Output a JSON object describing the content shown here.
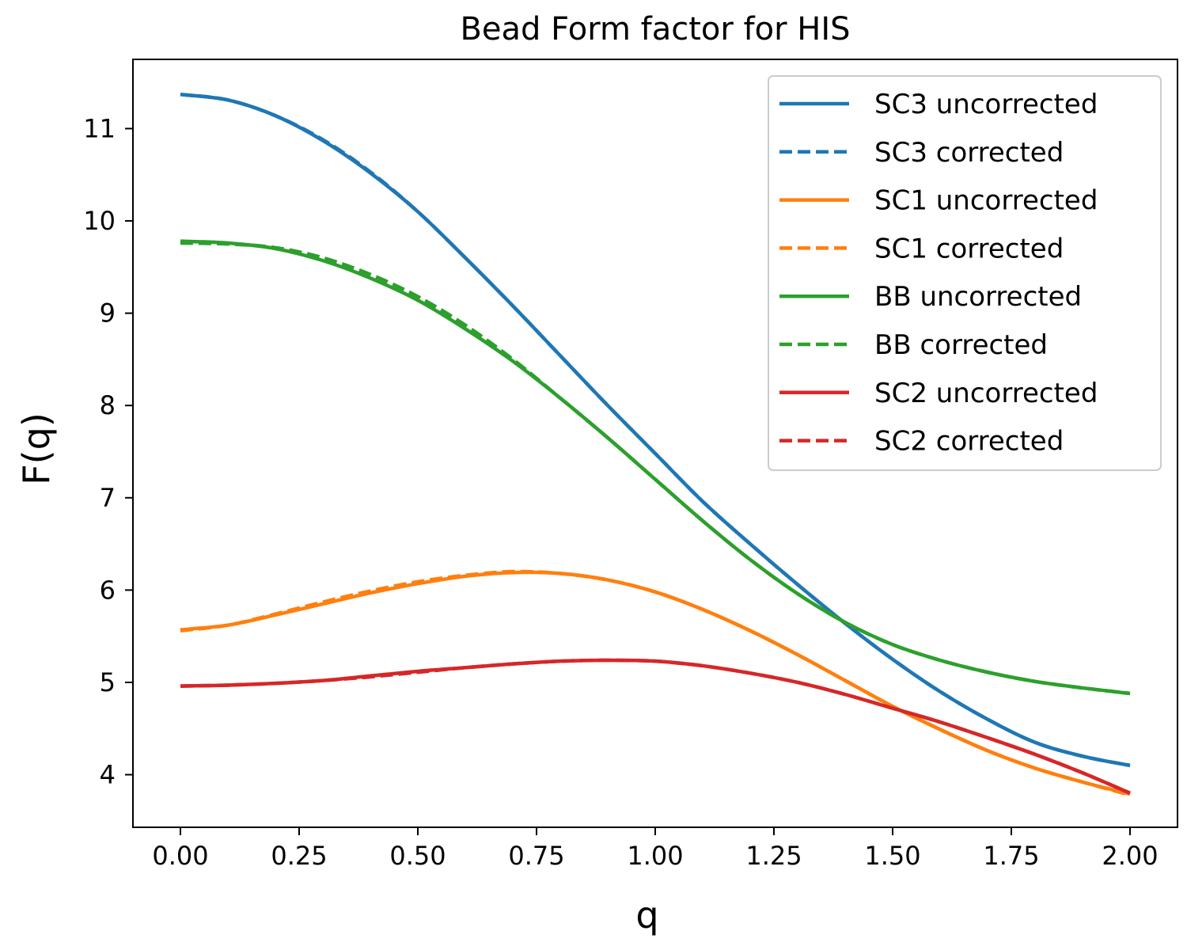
{
  "chart_data": {
    "type": "line",
    "title": "Bead Form factor for HIS",
    "xlabel": "q",
    "ylabel": "F(q)",
    "xlim": [
      -0.1,
      2.1
    ],
    "ylim": [
      3.43,
      11.75
    ],
    "xticks": [
      0.0,
      0.25,
      0.5,
      0.75,
      1.0,
      1.25,
      1.5,
      1.75,
      2.0
    ],
    "xtick_labels": [
      "0.00",
      "0.25",
      "0.50",
      "0.75",
      "1.00",
      "1.25",
      "1.50",
      "1.75",
      "2.00"
    ],
    "yticks": [
      4,
      5,
      6,
      7,
      8,
      9,
      10,
      11
    ],
    "ytick_labels": [
      "4",
      "5",
      "6",
      "7",
      "8",
      "9",
      "10",
      "11"
    ],
    "grid": false,
    "legend_position": "top-right",
    "x": [
      0.0,
      0.1,
      0.2,
      0.3,
      0.4,
      0.5,
      0.6,
      0.7,
      0.8,
      0.9,
      1.0,
      1.1,
      1.2,
      1.3,
      1.4,
      1.5,
      1.6,
      1.7,
      1.8,
      1.9,
      2.0
    ],
    "series": [
      {
        "name": "SC3 uncorrected",
        "color": "#1f77b4",
        "dash": "solid",
        "values": [
          11.37,
          11.31,
          11.14,
          10.87,
          10.52,
          10.1,
          9.6,
          9.08,
          8.54,
          8.0,
          7.48,
          6.96,
          6.5,
          6.06,
          5.64,
          5.25,
          4.9,
          4.6,
          4.35,
          4.2,
          4.1
        ]
      },
      {
        "name": "SC3 corrected",
        "color": "#1f77b4",
        "dash": "dashed",
        "values": [
          11.37,
          11.31,
          11.14,
          10.88,
          10.53,
          10.1,
          9.6,
          9.08,
          8.54,
          8.0,
          7.48,
          6.96,
          6.5,
          6.06,
          5.64,
          5.25,
          4.9,
          4.6,
          4.35,
          4.2,
          4.1
        ]
      },
      {
        "name": "SC1 uncorrected",
        "color": "#ff7f0e",
        "dash": "solid",
        "values": [
          5.57,
          5.62,
          5.73,
          5.85,
          5.97,
          6.07,
          6.15,
          6.19,
          6.18,
          6.11,
          5.98,
          5.79,
          5.56,
          5.3,
          5.02,
          4.74,
          4.49,
          4.26,
          4.07,
          3.92,
          3.79
        ]
      },
      {
        "name": "SC1 corrected",
        "color": "#ff7f0e",
        "dash": "dashed",
        "values": [
          5.56,
          5.62,
          5.74,
          5.87,
          5.99,
          6.09,
          6.16,
          6.2,
          6.18,
          6.11,
          5.98,
          5.79,
          5.56,
          5.3,
          5.02,
          4.74,
          4.49,
          4.26,
          4.07,
          3.92,
          3.78
        ]
      },
      {
        "name": "BB uncorrected",
        "color": "#2ca02c",
        "dash": "solid",
        "values": [
          9.78,
          9.76,
          9.7,
          9.57,
          9.38,
          9.14,
          8.83,
          8.48,
          8.08,
          7.65,
          7.2,
          6.75,
          6.33,
          5.96,
          5.65,
          5.41,
          5.24,
          5.11,
          5.01,
          4.94,
          4.88
        ]
      },
      {
        "name": "BB corrected",
        "color": "#2ca02c",
        "dash": "dashed",
        "values": [
          9.76,
          9.75,
          9.71,
          9.6,
          9.42,
          9.18,
          8.87,
          8.5,
          8.08,
          7.65,
          7.2,
          6.75,
          6.33,
          5.96,
          5.65,
          5.41,
          5.24,
          5.11,
          5.01,
          4.94,
          4.88
        ]
      },
      {
        "name": "SC2 uncorrected",
        "color": "#d62728",
        "dash": "solid",
        "values": [
          4.96,
          4.97,
          4.99,
          5.02,
          5.07,
          5.12,
          5.16,
          5.2,
          5.23,
          5.24,
          5.23,
          5.18,
          5.1,
          5.0,
          4.87,
          4.72,
          4.57,
          4.4,
          4.22,
          4.02,
          3.8
        ]
      },
      {
        "name": "SC2 corrected",
        "color": "#d62728",
        "dash": "dashed",
        "values": [
          4.96,
          4.97,
          4.99,
          5.02,
          5.06,
          5.11,
          5.16,
          5.2,
          5.23,
          5.24,
          5.23,
          5.18,
          5.1,
          5.0,
          4.87,
          4.72,
          4.57,
          4.4,
          4.22,
          4.02,
          3.8
        ]
      }
    ]
  }
}
